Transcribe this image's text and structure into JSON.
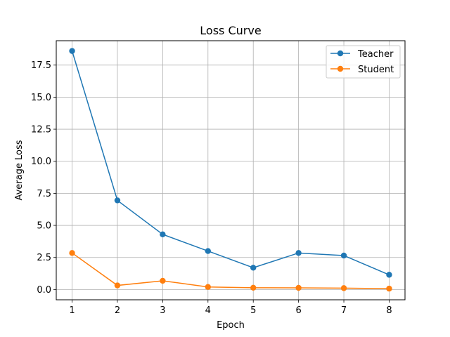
{
  "chart_data": {
    "type": "line",
    "title": "Loss Curve",
    "xlabel": "Epoch",
    "ylabel": "Average Loss",
    "x": [
      1,
      2,
      3,
      4,
      5,
      6,
      7,
      8
    ],
    "xlim": [
      0.65,
      8.35
    ],
    "ylim": [
      -0.8,
      19.4
    ],
    "xticks": [
      1,
      2,
      3,
      4,
      5,
      6,
      7,
      8
    ],
    "yticks": [
      0.0,
      2.5,
      5.0,
      7.5,
      10.0,
      12.5,
      15.0,
      17.5
    ],
    "ytick_labels": [
      "0.0",
      "2.5",
      "5.0",
      "7.5",
      "10.0",
      "12.5",
      "15.0",
      "17.5"
    ],
    "grid": true,
    "legend_position": "top-right",
    "series": [
      {
        "name": "Teacher",
        "color": "#1f77b4",
        "values": [
          18.6,
          6.95,
          4.3,
          3.0,
          1.7,
          2.85,
          2.65,
          1.15
        ]
      },
      {
        "name": "Student",
        "color": "#ff7f0e",
        "values": [
          2.85,
          0.32,
          0.68,
          0.2,
          0.14,
          0.13,
          0.11,
          0.07
        ]
      }
    ]
  }
}
